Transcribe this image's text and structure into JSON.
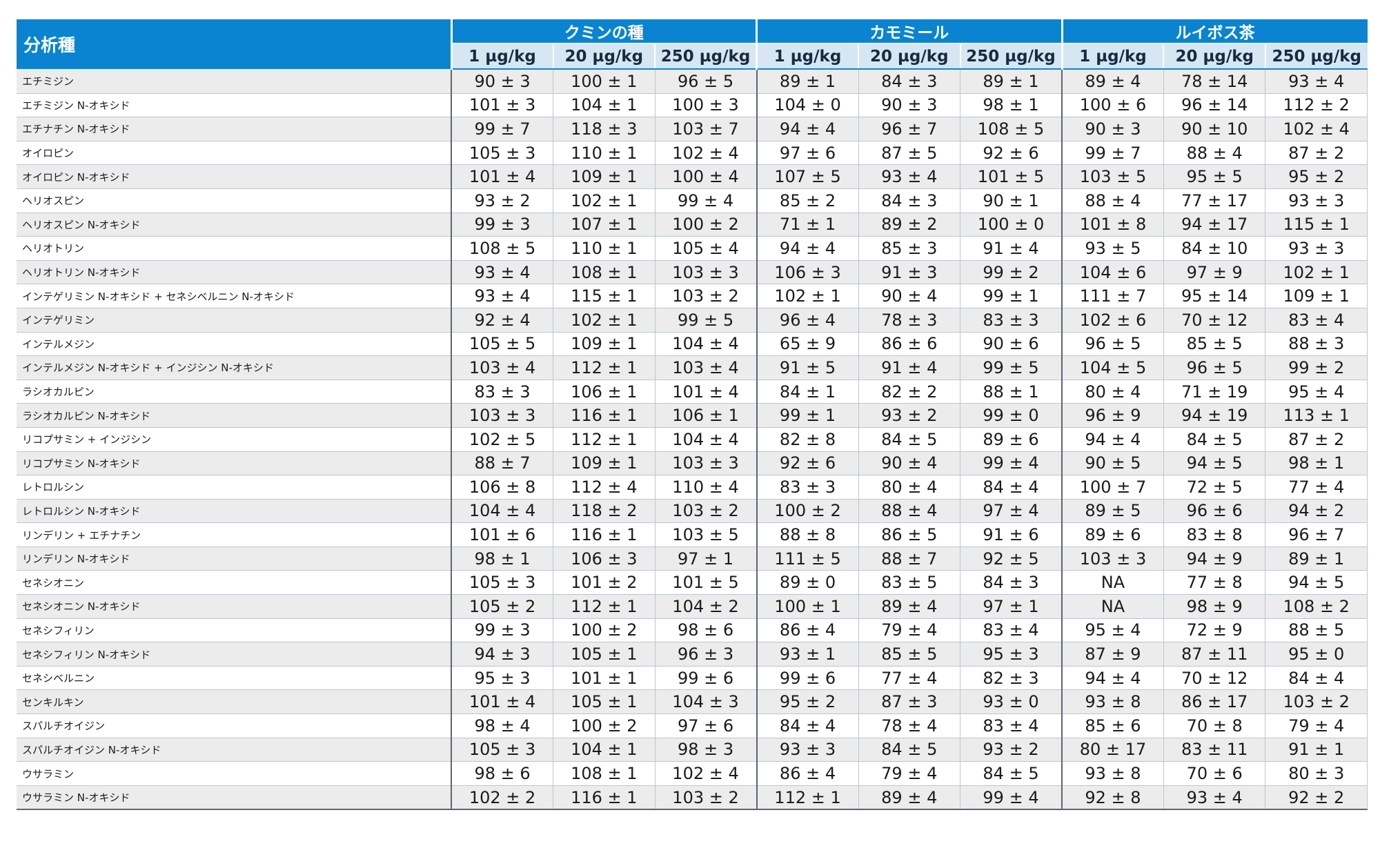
{
  "table": {
    "analyte_header": "分析種",
    "groups": [
      "クミンの種",
      "カモミール",
      "ルイボス茶"
    ],
    "concentrations": [
      "1 µg/kg",
      "20 µg/kg",
      "250 µg/kg"
    ],
    "rows": [
      {
        "name": "エチミジン",
        "values": [
          "90 ± 3",
          "100 ± 1",
          "96 ± 5",
          "89 ± 1",
          "84 ± 3",
          "89 ± 1",
          "89 ± 4",
          "78 ± 14",
          "93 ± 4"
        ]
      },
      {
        "name": "エチミジン N-オキシド",
        "values": [
          "101 ± 3",
          "104 ± 1",
          "100 ± 3",
          "104 ± 0",
          "90 ± 3",
          "98 ± 1",
          "100 ± 6",
          "96 ± 14",
          "112 ± 2"
        ]
      },
      {
        "name": "エチナチン N-オキシド",
        "values": [
          "99 ± 7",
          "118 ± 3",
          "103 ± 7",
          "94 ± 4",
          "96 ± 7",
          "108 ± 5",
          "90 ± 3",
          "90 ± 10",
          "102 ± 4"
        ]
      },
      {
        "name": "オイロピン",
        "values": [
          "105 ± 3",
          "110 ± 1",
          "102 ± 4",
          "97 ± 6",
          "87 ± 5",
          "92 ± 6",
          "99 ± 7",
          "88 ± 4",
          "87 ± 2"
        ]
      },
      {
        "name": "オイロピン N-オキシド",
        "values": [
          "101 ± 4",
          "109 ± 1",
          "100 ± 4",
          "107 ± 5",
          "93 ± 4",
          "101 ± 5",
          "103 ± 5",
          "95 ± 5",
          "95 ± 2"
        ]
      },
      {
        "name": "ヘリオスピン",
        "values": [
          "93 ± 2",
          "102 ± 1",
          "99 ± 4",
          "85 ± 2",
          "84 ± 3",
          "90 ± 1",
          "88 ± 4",
          "77 ± 17",
          "93 ± 3"
        ]
      },
      {
        "name": "ヘリオスピン N-オキシド",
        "values": [
          "99 ± 3",
          "107 ± 1",
          "100 ± 2",
          "71 ± 1",
          "89 ± 2",
          "100 ± 0",
          "101 ± 8",
          "94 ± 17",
          "115 ± 1"
        ]
      },
      {
        "name": "ヘリオトリン",
        "values": [
          "108 ± 5",
          "110 ± 1",
          "105 ± 4",
          "94 ± 4",
          "85 ± 3",
          "91 ± 4",
          "93 ± 5",
          "84 ± 10",
          "93 ± 3"
        ]
      },
      {
        "name": "ヘリオトリン N-オキシド",
        "values": [
          "93 ± 4",
          "108 ± 1",
          "103 ± 3",
          "106 ± 3",
          "91 ± 3",
          "99 ± 2",
          "104 ± 6",
          "97 ± 9",
          "102 ± 1"
        ]
      },
      {
        "name": "インテゲリミン N-オキシド + セネシベルニン N-オキシド",
        "values": [
          "93 ± 4",
          "115 ± 1",
          "103 ± 2",
          "102 ± 1",
          "90 ± 4",
          "99 ± 1",
          "111 ± 7",
          "95 ± 14",
          "109 ± 1"
        ]
      },
      {
        "name": "インテゲリミン",
        "values": [
          "92 ± 4",
          "102 ± 1",
          "99 ± 5",
          "96 ± 4",
          "78 ± 3",
          "83 ± 3",
          "102 ± 6",
          "70 ± 12",
          "83 ± 4"
        ]
      },
      {
        "name": "インテルメジン",
        "values": [
          "105 ± 5",
          "109 ± 1",
          "104 ± 4",
          "65 ± 9",
          "86 ± 6",
          "90 ± 6",
          "96 ± 5",
          "85 ± 5",
          "88 ± 3"
        ]
      },
      {
        "name": "インテルメジン N-オキシド + インジシン N-オキシド",
        "values": [
          "103 ± 4",
          "112 ± 1",
          "103 ± 4",
          "91 ± 5",
          "91 ± 4",
          "99 ± 5",
          "104 ± 5",
          "96 ± 5",
          "99 ± 2"
        ]
      },
      {
        "name": "ラシオカルピン",
        "values": [
          "83 ± 3",
          "106 ± 1",
          "101 ± 4",
          "84 ± 1",
          "82 ± 2",
          "88 ± 1",
          "80 ± 4",
          "71 ± 19",
          "95 ± 4"
        ]
      },
      {
        "name": "ラシオカルピン N-オキシド",
        "values": [
          "103 ± 3",
          "116 ± 1",
          "106 ± 1",
          "99 ± 1",
          "93 ± 2",
          "99 ± 0",
          "96 ± 9",
          "94 ± 19",
          "113 ± 1"
        ]
      },
      {
        "name": "リコプサミン + インジシン",
        "values": [
          "102 ± 5",
          "112 ± 1",
          "104 ± 4",
          "82 ± 8",
          "84 ± 5",
          "89 ± 6",
          "94 ± 4",
          "84 ± 5",
          "87 ± 2"
        ]
      },
      {
        "name": "リコプサミン N-オキシド",
        "values": [
          "88 ± 7",
          "109 ± 1",
          "103 ± 3",
          "92 ± 6",
          "90 ± 4",
          "99 ± 4",
          "90 ± 5",
          "94 ± 5",
          "98 ± 1"
        ]
      },
      {
        "name": "レトロルシン",
        "values": [
          "106 ± 8",
          "112 ± 4",
          "110 ± 4",
          "83 ± 3",
          "80 ± 4",
          "84 ± 4",
          "100 ± 7",
          "72 ± 5",
          "77 ± 4"
        ]
      },
      {
        "name": "レトロルシン N-オキシド",
        "values": [
          "104 ± 4",
          "118 ± 2",
          "103 ± 2",
          "100 ± 2",
          "88 ± 4",
          "97 ± 4",
          "89 ± 5",
          "96 ± 6",
          "94 ± 2"
        ]
      },
      {
        "name": "リンデリン + エチナチン",
        "values": [
          "101 ± 6",
          "116 ± 1",
          "103 ± 5",
          "88 ± 8",
          "86 ± 5",
          "91 ± 6",
          "89 ± 6",
          "83 ± 8",
          "96 ± 7"
        ]
      },
      {
        "name": "リンデリン N-オキシド",
        "values": [
          "98 ± 1",
          "106 ± 3",
          "97 ± 1",
          "111 ± 5",
          "88 ± 7",
          "92 ± 5",
          "103 ± 3",
          "94 ± 9",
          "89 ± 1"
        ]
      },
      {
        "name": "セネシオニン",
        "values": [
          "105 ± 3",
          "101 ± 2",
          "101 ± 5",
          "89 ± 0",
          "83 ± 5",
          "84 ± 3",
          "NA",
          "77 ± 8",
          "94 ± 5"
        ]
      },
      {
        "name": "セネシオニン N-オキシド",
        "values": [
          "105 ± 2",
          "112 ± 1",
          "104 ± 2",
          "100 ± 1",
          "89 ± 4",
          "97 ± 1",
          "NA",
          "98 ± 9",
          "108 ± 2"
        ]
      },
      {
        "name": "セネシフィリン",
        "values": [
          "99 ± 3",
          "100 ± 2",
          "98 ± 6",
          "86 ± 4",
          "79 ± 4",
          "83 ± 4",
          "95 ± 4",
          "72 ± 9",
          "88 ± 5"
        ]
      },
      {
        "name": "セネシフィリン N-オキシド",
        "values": [
          "94 ± 3",
          "105 ± 1",
          "96 ± 3",
          "93 ± 1",
          "85 ± 5",
          "95 ± 3",
          "87 ± 9",
          "87 ± 11",
          "95 ± 0"
        ]
      },
      {
        "name": "セネシベルニン",
        "values": [
          "95 ± 3",
          "101 ± 1",
          "99 ± 6",
          "99 ± 6",
          "77 ± 4",
          "82 ± 3",
          "94 ± 4",
          "70 ± 12",
          "84 ± 4"
        ]
      },
      {
        "name": "センキルキン",
        "values": [
          "101 ± 4",
          "105 ± 1",
          "104 ± 3",
          "95 ± 2",
          "87 ± 3",
          "93 ± 0",
          "93 ± 8",
          "86 ± 17",
          "103 ± 2"
        ]
      },
      {
        "name": "スパルチオイジン",
        "values": [
          "98 ± 4",
          "100 ± 2",
          "97 ± 6",
          "84 ± 4",
          "78 ± 4",
          "83 ± 4",
          "85 ± 6",
          "70 ± 8",
          "79 ± 4"
        ]
      },
      {
        "name": "スパルチオイジン N-オキシド",
        "values": [
          "105 ± 3",
          "104 ± 1",
          "98 ± 3",
          "93 ± 3",
          "84 ± 5",
          "93 ± 2",
          "80 ± 17",
          "83 ± 11",
          "91 ± 1"
        ]
      },
      {
        "name": "ウサラミン",
        "values": [
          "98 ± 6",
          "108 ± 1",
          "102 ± 4",
          "86 ± 4",
          "79 ± 4",
          "84 ± 5",
          "93 ± 8",
          "70 ± 6",
          "80 ± 3"
        ]
      },
      {
        "name": "ウサラミン N-オキシド",
        "values": [
          "102 ± 2",
          "116 ± 1",
          "103 ± 2",
          "112 ± 1",
          "89 ± 4",
          "99 ± 4",
          "92 ± 8",
          "93 ± 4",
          "92 ± 2"
        ]
      }
    ]
  }
}
